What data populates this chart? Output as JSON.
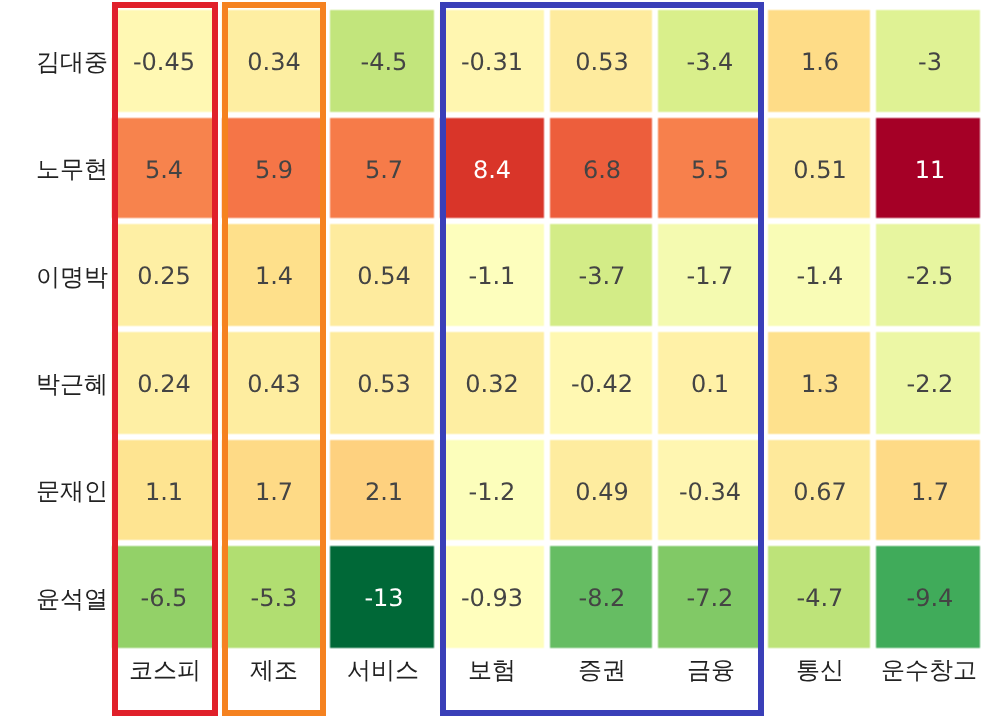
{
  "chart_data": {
    "type": "heatmap",
    "categories": [
      "코스피",
      "제조",
      "서비스",
      "보험",
      "증권",
      "금융",
      "통신",
      "운수창고"
    ],
    "y_categories": [
      "김대중",
      "노무현",
      "이명박",
      "박근혜",
      "문재인",
      "윤석열"
    ],
    "cells": [
      [
        -0.45,
        0.34,
        -4.5,
        -0.31,
        0.53,
        -3.4,
        1.6,
        -3
      ],
      [
        5.4,
        5.9,
        5.7,
        8.4,
        6.8,
        5.5,
        0.51,
        11
      ],
      [
        0.25,
        1.4,
        0.54,
        -1.1,
        -3.7,
        -1.7,
        -1.4,
        -2.5
      ],
      [
        0.24,
        0.43,
        0.53,
        0.32,
        -0.42,
        0.1,
        1.3,
        -2.2
      ],
      [
        1.1,
        1.7,
        2.1,
        -1.2,
        0.49,
        -0.34,
        0.67,
        1.7
      ],
      [
        -6.5,
        -5.3,
        -13,
        -0.93,
        -8.2,
        -7.2,
        -4.7,
        -9.4
      ]
    ],
    "data_labels": true
  }
}
